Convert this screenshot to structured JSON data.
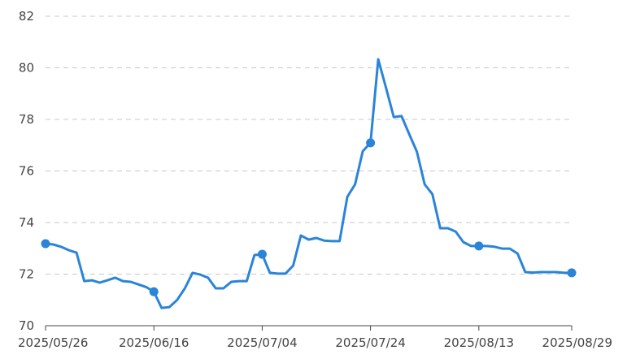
{
  "chart_data": {
    "type": "line",
    "title": "",
    "xlabel": "",
    "ylabel": "",
    "ylim": [
      70,
      82
    ],
    "yticks": [
      70,
      72,
      74,
      76,
      78,
      80,
      82
    ],
    "grid": "horizontal-dashed",
    "line_color": "#2a84d8",
    "x_tick_labels": [
      "2025/05/26",
      "2025/06/16",
      "2025/07/04",
      "2025/07/24",
      "2025/08/13",
      "2025/08/29"
    ],
    "x_tick_indices": [
      0,
      14,
      28,
      42,
      56,
      68
    ],
    "marker_indices": [
      0,
      14,
      28,
      42,
      56,
      68
    ],
    "values": [
      73.18,
      73.15,
      73.06,
      72.93,
      72.83,
      71.73,
      71.76,
      71.67,
      71.76,
      71.86,
      71.73,
      71.7,
      71.6,
      71.5,
      71.32,
      70.69,
      70.72,
      71.0,
      71.45,
      72.05,
      71.98,
      71.86,
      71.45,
      71.45,
      71.7,
      71.73,
      71.73,
      72.74,
      72.77,
      72.05,
      72.02,
      72.02,
      72.33,
      73.5,
      73.34,
      73.4,
      73.3,
      73.28,
      73.28,
      75.0,
      75.48,
      76.77,
      77.09,
      80.33,
      79.23,
      78.09,
      78.13,
      77.43,
      76.74,
      75.48,
      75.1,
      73.78,
      73.78,
      73.65,
      73.24,
      73.09,
      73.09,
      73.09,
      73.06,
      72.99,
      72.99,
      72.8,
      72.08,
      72.06,
      72.08,
      72.08,
      72.08,
      72.05,
      72.05
    ]
  }
}
